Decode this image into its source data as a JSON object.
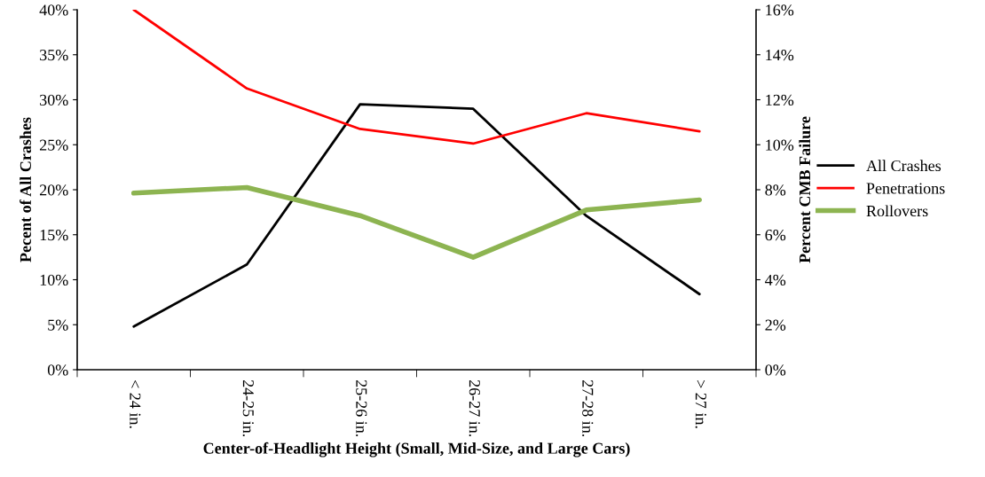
{
  "chart_data": {
    "type": "line",
    "xlabel": "Center-of-Headlight Height (Small, Mid-Size, and Large Cars)",
    "ylabel": "Pecent of All Crashes",
    "y2label": "Percent CMB Failure",
    "categories": [
      "< 24 in.",
      "24-25 in.",
      "25-26 in.",
      "26-27 in.",
      "27-28 in.",
      "> 27 in."
    ],
    "series": [
      {
        "name": "All Crashes",
        "color": "#000000",
        "values": [
          4.8,
          11.7,
          29.5,
          29.0,
          17.1,
          8.4
        ]
      },
      {
        "name": "Penetrations",
        "color": "#ff0000",
        "axis": "y2",
        "values": [
          16.0,
          12.5,
          10.7,
          10.05,
          11.4,
          10.6
        ]
      },
      {
        "name": "Rollovers",
        "color": "#8db451",
        "axis": "y2",
        "values": [
          7.85,
          8.1,
          6.85,
          5.0,
          7.1,
          7.55
        ]
      }
    ],
    "ylim": [
      0,
      40
    ],
    "yticks": [
      {
        "value": 0,
        "label": "0%"
      },
      {
        "value": 5,
        "label": "5%"
      },
      {
        "value": 10,
        "label": "10%"
      },
      {
        "value": 15,
        "label": "15%"
      },
      {
        "value": 20,
        "label": "20%"
      },
      {
        "value": 25,
        "label": "25%"
      },
      {
        "value": 30,
        "label": "30%"
      },
      {
        "value": 35,
        "label": "35%"
      },
      {
        "value": 40,
        "label": "40%"
      }
    ],
    "y2lim": [
      0,
      16
    ],
    "y2ticks": [
      {
        "value": 0,
        "label": "0%"
      },
      {
        "value": 2,
        "label": "2%"
      },
      {
        "value": 4,
        "label": "4%"
      },
      {
        "value": 6,
        "label": "6%"
      },
      {
        "value": 8,
        "label": "8%"
      },
      {
        "value": 10,
        "label": "10%"
      },
      {
        "value": 12,
        "label": "12%"
      },
      {
        "value": 14,
        "label": "14%"
      },
      {
        "value": 16,
        "label": "16%"
      }
    ],
    "legend": "right",
    "grid": false,
    "marker": "none",
    "line_style": "solid"
  }
}
